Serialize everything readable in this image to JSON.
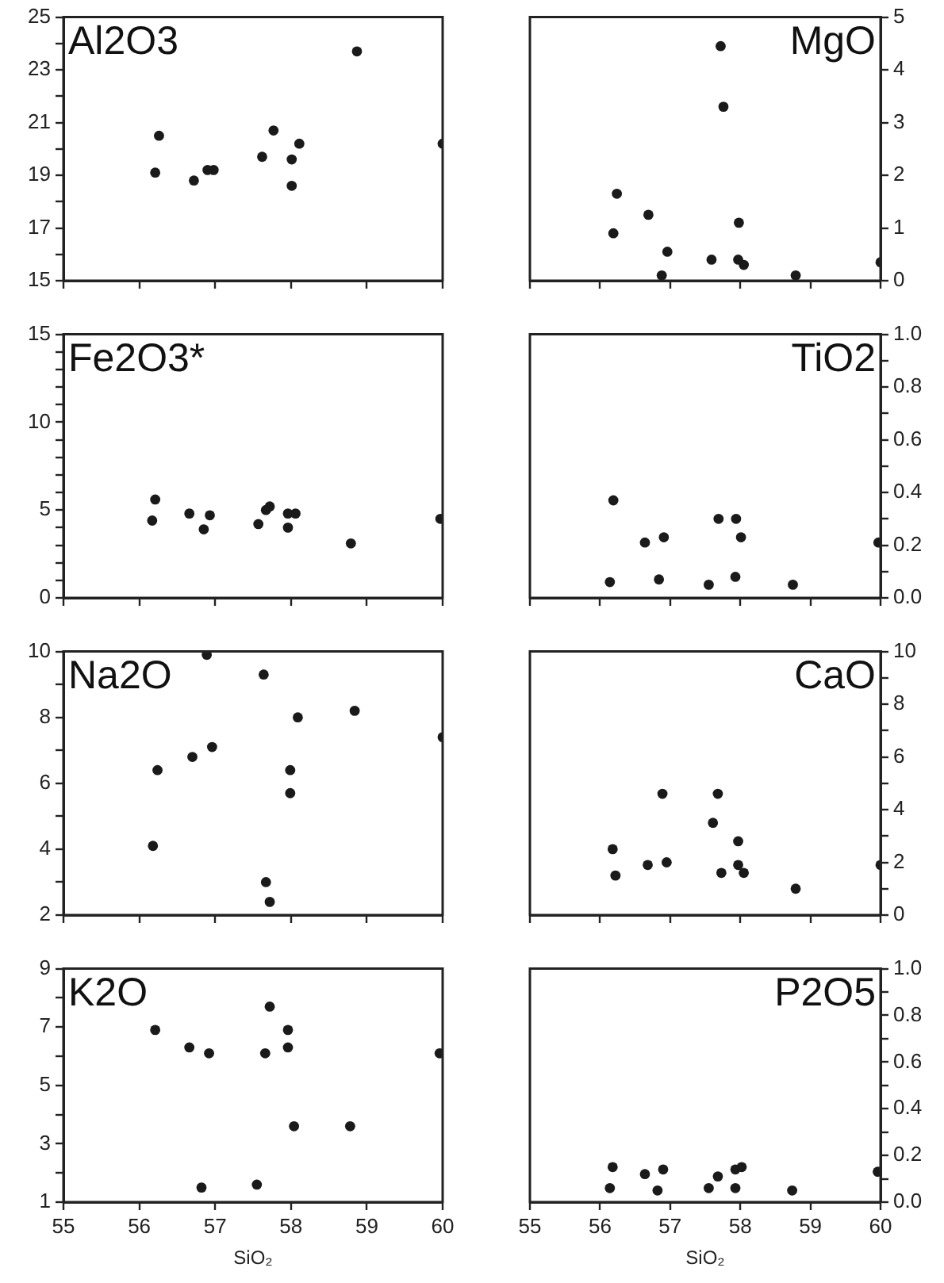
{
  "chart_data": [
    {
      "type": "scatter",
      "title": "Al2O3",
      "color": "#1a1a1a",
      "marker": "circle",
      "grid": false,
      "tick_labels": "y",
      "xlim": [
        55,
        60
      ],
      "xticks": [
        {
          "value": 55,
          "label": null
        },
        {
          "value": 56,
          "label": null
        },
        {
          "value": 57,
          "label": null
        },
        {
          "value": 58,
          "label": null
        },
        {
          "value": 59,
          "label": null
        },
        {
          "value": 60,
          "label": null
        }
      ],
      "ylim": [
        15,
        25
      ],
      "yticks": [
        15,
        {
          "value": 16,
          "label": null
        },
        17,
        {
          "value": 18,
          "label": null
        },
        19,
        {
          "value": 20,
          "label": null
        },
        21,
        {
          "value": 22,
          "label": null
        },
        23,
        {
          "value": 24,
          "label": null
        },
        25
      ],
      "x": [
        56.21,
        56.26,
        56.72,
        56.9,
        56.98,
        57.62,
        57.77,
        58.01,
        58.01,
        58.11,
        58.87,
        60
      ],
      "values": [
        19.1,
        20.5,
        18.8,
        19.2,
        19.2,
        19.7,
        20.7,
        19.6,
        18.6,
        20.2,
        23.7,
        20.2
      ]
    },
    {
      "type": "scatter",
      "title": "MgO",
      "color": "#1a1a1a",
      "marker": "circle",
      "grid": false,
      "tick_labels": "y",
      "xlim": [
        55,
        60
      ],
      "xticks": [
        {
          "value": 55,
          "label": null
        },
        {
          "value": 56,
          "label": null
        },
        {
          "value": 57,
          "label": null
        },
        {
          "value": 58,
          "label": null
        },
        {
          "value": 59,
          "label": null
        },
        {
          "value": 60,
          "label": null
        }
      ],
      "ylim": [
        0,
        5
      ],
      "yticks": [
        0,
        1,
        2,
        3,
        4,
        5
      ],
      "x": [
        57.72,
        57.76,
        56.24,
        56.19,
        56.69,
        56.96,
        56.88,
        57.59,
        57.98,
        57.97,
        58.05,
        58.79,
        60
      ],
      "values": [
        4.45,
        3.3,
        1.65,
        0.9,
        1.25,
        0.55,
        0.1,
        0.4,
        1.1,
        0.4,
        0.3,
        0.1,
        0.35
      ]
    },
    {
      "type": "scatter",
      "title": "Fe2O3*",
      "color": "#1a1a1a",
      "marker": "circle",
      "grid": false,
      "tick_labels": "y",
      "xlim": [
        55,
        60
      ],
      "xticks": [
        {
          "value": 55,
          "label": null
        },
        {
          "value": 56,
          "label": null
        },
        {
          "value": 57,
          "label": null
        },
        {
          "value": 58,
          "label": null
        },
        {
          "value": 59,
          "label": null
        },
        {
          "value": 60,
          "label": null
        }
      ],
      "ylim": [
        0,
        15
      ],
      "yticks": [
        0,
        {
          "value": 1,
          "label": null
        },
        {
          "value": 2,
          "label": null
        },
        {
          "value": 3,
          "label": null
        },
        {
          "value": 4,
          "label": null
        },
        5,
        {
          "value": 6,
          "label": null
        },
        {
          "value": 7,
          "label": null
        },
        {
          "value": 8,
          "label": null
        },
        {
          "value": 9,
          "label": null
        },
        10,
        {
          "value": 11,
          "label": null
        },
        {
          "value": 12,
          "label": null
        },
        {
          "value": 13,
          "label": null
        },
        {
          "value": 14,
          "label": null
        },
        15
      ],
      "x": [
        56.21,
        56.17,
        56.66,
        56.85,
        56.93,
        57.57,
        57.67,
        57.72,
        57.96,
        57.96,
        58.06,
        58.79,
        59.97
      ],
      "values": [
        5.6,
        4.4,
        4.8,
        3.9,
        4.7,
        4.2,
        5.0,
        5.2,
        4.0,
        4.8,
        4.8,
        3.1,
        4.5
      ]
    },
    {
      "type": "scatter",
      "title": "TiO2",
      "color": "#1a1a1a",
      "marker": "circle",
      "grid": false,
      "tick_labels": "y",
      "xlim": [
        55,
        60
      ],
      "xticks": [
        {
          "value": 55,
          "label": null
        },
        {
          "value": 56,
          "label": null
        },
        {
          "value": 57,
          "label": null
        },
        {
          "value": 58,
          "label": null
        },
        {
          "value": 59,
          "label": null
        },
        {
          "value": 60,
          "label": null
        }
      ],
      "ylim": [
        0,
        1
      ],
      "yticks": [
        {
          "value": 0,
          "label": "0.0"
        },
        {
          "value": 0.1,
          "label": null
        },
        {
          "value": 0.2,
          "label": "0.2"
        },
        {
          "value": 0.3,
          "label": null
        },
        {
          "value": 0.4,
          "label": "0.4"
        },
        {
          "value": 0.5,
          "label": null
        },
        {
          "value": 0.6,
          "label": "0.6"
        },
        {
          "value": 0.7,
          "label": null
        },
        {
          "value": 0.8,
          "label": "0.8"
        },
        {
          "value": 0.9,
          "label": null
        },
        {
          "value": 1,
          "label": "1.0"
        }
      ],
      "x": [
        56.19,
        56.14,
        56.64,
        56.91,
        56.84,
        57.55,
        57.69,
        57.94,
        57.93,
        58.01,
        58.75,
        59.97
      ],
      "values": [
        0.37,
        0.06,
        0.21,
        0.23,
        0.07,
        0.05,
        0.3,
        0.3,
        0.08,
        0.23,
        0.05,
        0.21
      ]
    },
    {
      "type": "scatter",
      "title": "Na2O",
      "color": "#1a1a1a",
      "marker": "circle",
      "grid": false,
      "tick_labels": "y",
      "xlim": [
        55,
        60
      ],
      "xticks": [
        {
          "value": 55,
          "label": null
        },
        {
          "value": 56,
          "label": null
        },
        {
          "value": 57,
          "label": null
        },
        {
          "value": 58,
          "label": null
        },
        {
          "value": 59,
          "label": null
        },
        {
          "value": 60,
          "label": null
        }
      ],
      "ylim": [
        2,
        10
      ],
      "yticks": [
        2,
        {
          "value": 3,
          "label": null
        },
        4,
        {
          "value": 5,
          "label": null
        },
        6,
        {
          "value": 7,
          "label": null
        },
        8,
        {
          "value": 9,
          "label": null
        },
        10
      ],
      "x": [
        56.18,
        56.24,
        56.7,
        56.96,
        56.89,
        57.64,
        57.67,
        57.72,
        57.99,
        57.99,
        58.09,
        58.84,
        60
      ],
      "values": [
        4.1,
        6.4,
        6.8,
        7.1,
        9.9,
        9.3,
        3.0,
        2.4,
        6.4,
        5.7,
        8.0,
        8.2,
        7.4
      ]
    },
    {
      "type": "scatter",
      "title": "CaO",
      "color": "#1a1a1a",
      "marker": "circle",
      "grid": false,
      "tick_labels": "y",
      "xlim": [
        55,
        60
      ],
      "xticks": [
        {
          "value": 55,
          "label": null
        },
        {
          "value": 56,
          "label": null
        },
        {
          "value": 57,
          "label": null
        },
        {
          "value": 58,
          "label": null
        },
        {
          "value": 59,
          "label": null
        },
        {
          "value": 60,
          "label": null
        }
      ],
      "ylim": [
        0,
        10
      ],
      "yticks": [
        0,
        {
          "value": 1,
          "label": null
        },
        2,
        {
          "value": 3,
          "label": null
        },
        4,
        {
          "value": 5,
          "label": null
        },
        6,
        {
          "value": 7,
          "label": null
        },
        8,
        {
          "value": 9,
          "label": null
        },
        10
      ],
      "x": [
        56.18,
        56.22,
        56.68,
        56.89,
        56.95,
        57.61,
        57.68,
        57.73,
        57.97,
        57.97,
        58.05,
        58.79,
        60
      ],
      "values": [
        2.5,
        1.5,
        1.9,
        4.6,
        2.0,
        3.5,
        4.6,
        1.6,
        2.8,
        1.9,
        1.6,
        1.0,
        1.9
      ]
    },
    {
      "type": "scatter",
      "title": "K2O",
      "color": "#1a1a1a",
      "marker": "circle",
      "grid": false,
      "xlabel": "SiO₂",
      "xlim": [
        55,
        60
      ],
      "xticks": [
        55,
        56,
        57,
        58,
        59,
        60
      ],
      "ylim": [
        1,
        9
      ],
      "yticks": [
        1,
        {
          "value": 2,
          "label": null
        },
        3,
        {
          "value": 4,
          "label": null
        },
        5,
        {
          "value": 6,
          "label": null
        },
        7,
        {
          "value": 8,
          "label": null
        },
        9
      ],
      "x": [
        56.21,
        56.66,
        56.92,
        56.82,
        57.55,
        57.66,
        57.72,
        57.96,
        57.96,
        58.04,
        58.78,
        59.96
      ],
      "values": [
        6.9,
        6.3,
        6.1,
        1.5,
        1.6,
        6.1,
        7.7,
        6.9,
        6.3,
        3.6,
        3.6,
        6.1
      ]
    },
    {
      "type": "scatter",
      "title": "P2O5",
      "color": "#1a1a1a",
      "marker": "circle",
      "grid": false,
      "xlabel": "SiO₂",
      "xlim": [
        55,
        60
      ],
      "xticks": [
        55,
        56,
        57,
        58,
        59,
        60
      ],
      "ylim": [
        0,
        1
      ],
      "yticks": [
        {
          "value": 0,
          "label": "0.0"
        },
        {
          "value": 0.1,
          "label": null
        },
        {
          "value": 0.2,
          "label": "0.2"
        },
        {
          "value": 0.3,
          "label": null
        },
        {
          "value": 0.4,
          "label": "0.4"
        },
        {
          "value": 0.5,
          "label": null
        },
        {
          "value": 0.6,
          "label": "0.6"
        },
        {
          "value": 0.7,
          "label": null
        },
        {
          "value": 0.8,
          "label": "0.8"
        },
        {
          "value": 0.9,
          "label": null
        },
        {
          "value": 1,
          "label": "1.0"
        }
      ],
      "x": [
        56.18,
        56.14,
        56.64,
        56.82,
        56.9,
        57.55,
        57.68,
        57.93,
        57.93,
        58.02,
        58.74,
        59.96
      ],
      "values": [
        0.15,
        0.06,
        0.12,
        0.05,
        0.14,
        0.06,
        0.11,
        0.06,
        0.14,
        0.15,
        0.05,
        0.13
      ]
    }
  ]
}
